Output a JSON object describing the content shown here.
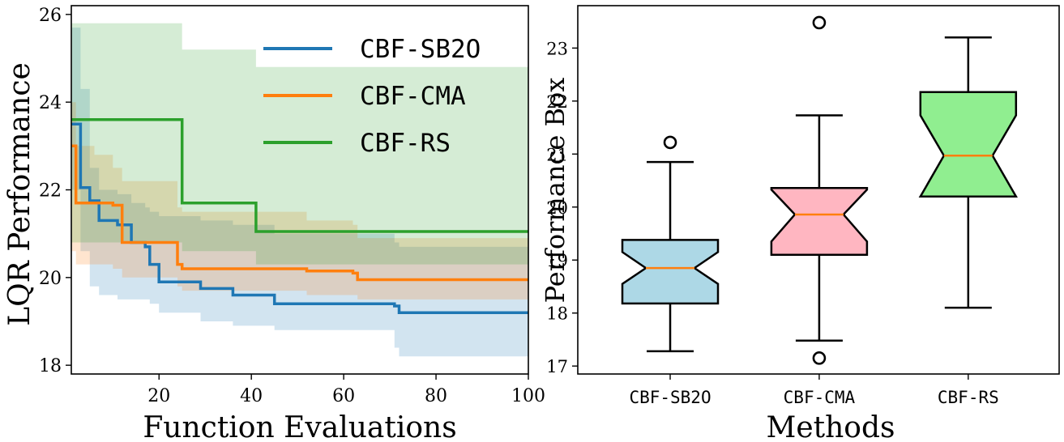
{
  "colors": {
    "sb2o": "#1f77b4",
    "cma": "#ff7f0e",
    "rs": "#2ca02c",
    "median": "#ff7f0e",
    "box_sb2o": "#add8e6",
    "box_cma": "#ffb6c1",
    "box_rs": "#90ee90"
  },
  "chart_data": [
    {
      "type": "line",
      "xlabel": "Function Evaluations",
      "ylabel": "LQR Performance",
      "xlim": [
        1,
        100
      ],
      "ylim": [
        17.8,
        26.2
      ],
      "xticks": [
        20,
        40,
        60,
        80,
        100
      ],
      "yticks": [
        18,
        20,
        22,
        24,
        26
      ],
      "grid": false,
      "legend_position": "top-right",
      "series": [
        {
          "name": "CBF-SB2O",
          "color": "#1f77b4",
          "step_x": [
            1,
            3,
            5,
            7,
            11,
            14,
            17,
            18,
            20,
            29,
            36,
            45,
            71,
            72,
            100
          ],
          "y": [
            23.5,
            22.05,
            21.75,
            21.3,
            21.2,
            20.8,
            20.7,
            20.3,
            19.9,
            19.75,
            19.6,
            19.4,
            19.35,
            19.2,
            19.2
          ],
          "band_upper": [
            25.7,
            24.3,
            22.5,
            22.0,
            21.9,
            21.7,
            21.6,
            21.5,
            21.4,
            21.3,
            21.2,
            21.0,
            20.8,
            20.7,
            20.7
          ],
          "band_lower": [
            22.0,
            20.6,
            19.8,
            19.6,
            19.5,
            19.5,
            19.5,
            19.4,
            19.2,
            19.0,
            18.9,
            18.8,
            18.4,
            18.2,
            18.2
          ]
        },
        {
          "name": "CBF-CMA",
          "color": "#ff7f0e",
          "step_x": [
            1,
            2,
            6,
            10,
            12,
            24,
            25,
            52,
            62,
            63,
            100
          ],
          "y": [
            23.0,
            21.7,
            21.7,
            21.65,
            20.8,
            20.3,
            20.2,
            20.15,
            20.1,
            19.95,
            19.95
          ],
          "band_upper": [
            24.0,
            23.0,
            22.8,
            22.5,
            22.2,
            21.6,
            21.5,
            21.3,
            21.2,
            20.9,
            20.6
          ],
          "band_lower": [
            20.6,
            20.3,
            20.3,
            20.2,
            20.0,
            19.8,
            19.7,
            19.6,
            19.6,
            19.5,
            19.2
          ]
        },
        {
          "name": "CBF-RS",
          "color": "#2ca02c",
          "step_x": [
            1,
            25,
            41,
            100
          ],
          "y": [
            23.6,
            21.7,
            21.05,
            21.05
          ],
          "band_upper": [
            25.8,
            25.2,
            24.8,
            22.2
          ],
          "band_lower": [
            20.8,
            20.6,
            20.3,
            20.0
          ]
        }
      ]
    },
    {
      "type": "box",
      "xlabel": "Methods",
      "ylabel": "Performance Box",
      "ylim": [
        16.85,
        23.8
      ],
      "yticks": [
        17,
        18,
        19,
        20,
        21,
        22,
        23
      ],
      "categories": [
        "CBF-SB2O",
        "CBF-CMA",
        "CBF-RS"
      ],
      "notched": true,
      "boxes": [
        {
          "label": "CBF-SB2O",
          "whisker_low": 17.28,
          "q1": 18.18,
          "median": 18.85,
          "q3": 19.38,
          "whisker_high": 20.85,
          "notch_low": 18.55,
          "notch_high": 19.15,
          "outliers": [
            21.22
          ],
          "fill": "#add8e6"
        },
        {
          "label": "CBF-CMA",
          "whisker_low": 17.48,
          "q1": 19.1,
          "median": 19.86,
          "q3": 20.36,
          "whisker_high": 21.73,
          "notch_low": 19.35,
          "notch_high": 20.33,
          "outliers": [
            23.48,
            17.15
          ],
          "fill": "#ffb6c1"
        },
        {
          "label": "CBF-RS",
          "whisker_low": 18.1,
          "q1": 20.2,
          "median": 20.97,
          "q3": 22.17,
          "whisker_high": 23.2,
          "notch_low": 20.2,
          "notch_high": 21.73,
          "outliers": [],
          "fill": "#90ee90"
        }
      ]
    }
  ]
}
